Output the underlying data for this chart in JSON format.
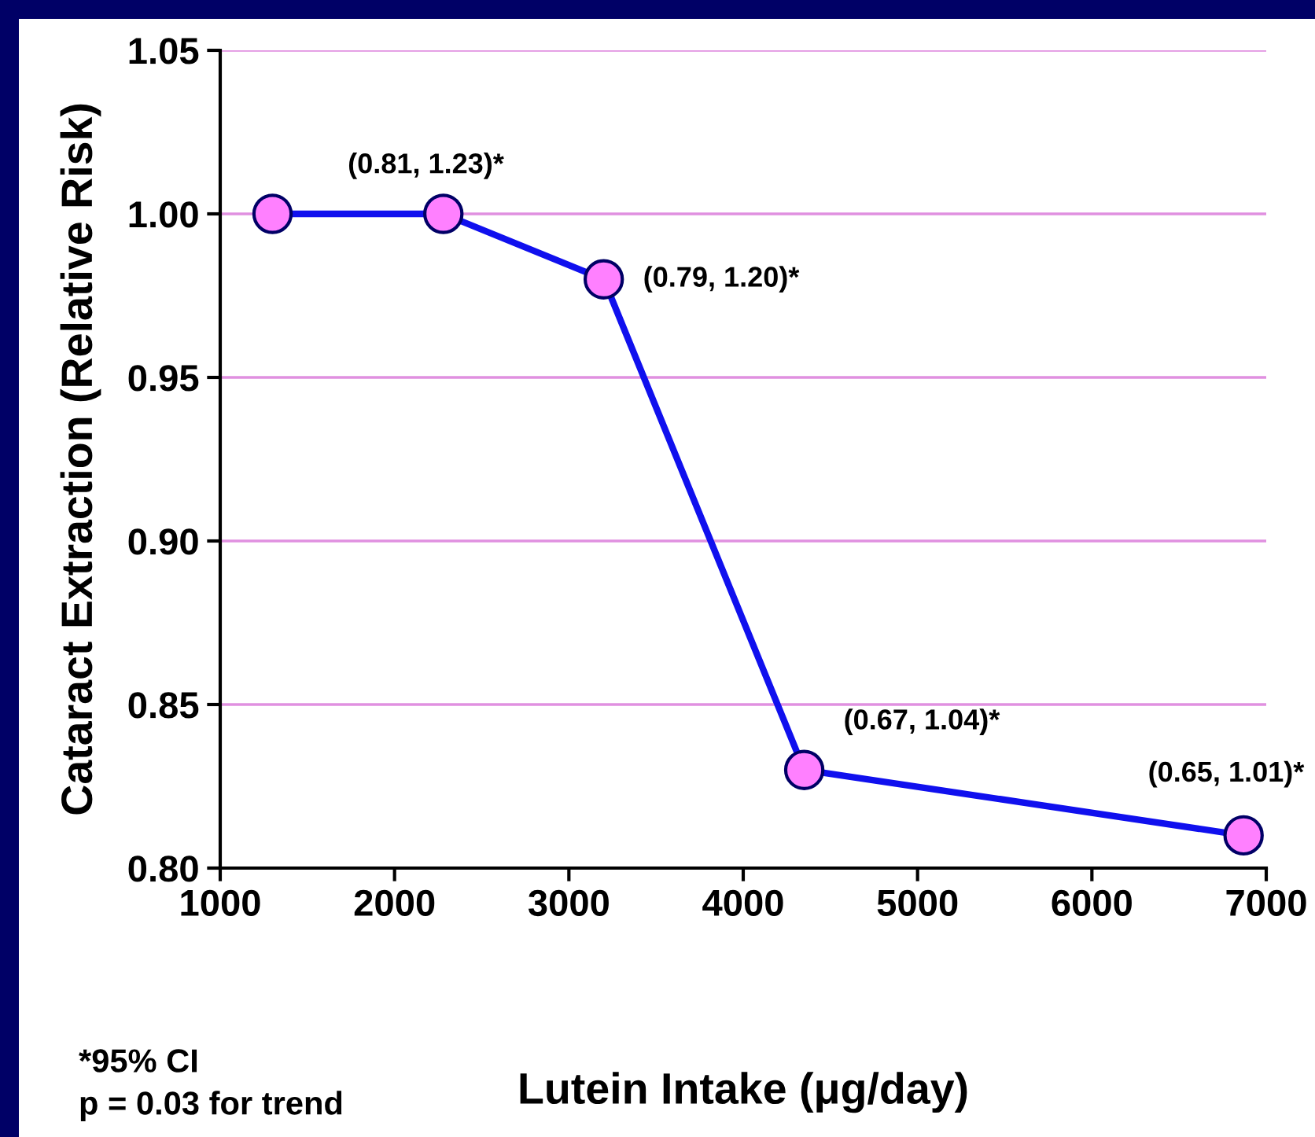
{
  "chart_data": {
    "type": "line",
    "xlabel": "Lutein Intake (μg/day)",
    "ylabel": "Cataract Extraction (Relative Risk)",
    "x": [
      1300,
      2280,
      3200,
      4350,
      6870
    ],
    "series": [
      {
        "color": "#1010ee",
        "values": [
          1.0,
          1.0,
          0.98,
          0.83,
          0.81
        ]
      }
    ],
    "marker": "circle",
    "line_style": "solid",
    "grid": "y",
    "xlim": [
      1000,
      7000
    ],
    "xticks": [
      1000,
      2000,
      3000,
      4000,
      5000,
      6000,
      7000
    ],
    "ylim": [
      0.8,
      1.05
    ],
    "yticks": [
      {
        "value": 0.8,
        "label": "0.80"
      },
      {
        "value": 0.85,
        "label": "0.85"
      },
      {
        "value": 0.9,
        "label": "0.90"
      },
      {
        "value": 0.95,
        "label": "0.95"
      },
      {
        "value": 1.0,
        "label": "1.00"
      },
      {
        "value": 1.05,
        "label": "1.05"
      }
    ],
    "annotations": [
      {
        "text": "(0.81, 1.23)*",
        "x": 2280,
        "y": 1.0
      },
      {
        "text": "(0.79, 1.20)*",
        "x": 3200,
        "y": 0.98
      },
      {
        "text": "(0.67, 1.04)*",
        "x": 4350,
        "y": 0.83
      },
      {
        "text": "(0.65, 1.01)*",
        "x": 6870,
        "y": 0.81
      },
      "*95% CI\np = 0.03 for trend"
    ]
  }
}
